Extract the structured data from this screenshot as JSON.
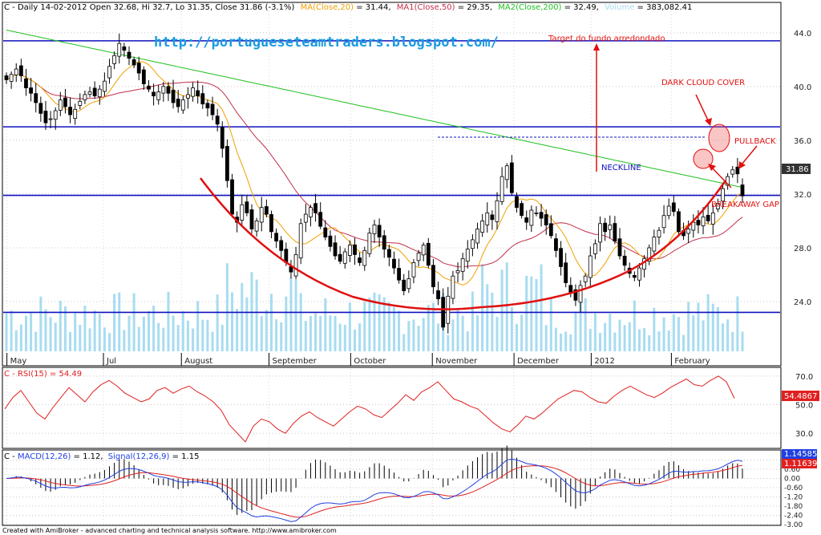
{
  "header": {
    "main_prefix": "C - Daily 14-02-2012 Open 32.68, Hi 32.7, Lo 31.35, Close 31.86 (-3.1%)",
    "ma20_label": "MA(Close,20)",
    "ma20_value": " = 31.44,",
    "ma50_label": "MA1(Close,50)",
    "ma50_value": " = 29.35,",
    "ma200_label": "MA2(Close,200)",
    "ma200_value": " = 32.49,",
    "volume_label": "Volume",
    "volume_value": " = 383,082.41"
  },
  "url_text": "http://portugueseteamtraders.blogspot.com/",
  "annotations": {
    "target": "Target do fundo arredondado",
    "dark_cloud": "DARK CLOUD COVER",
    "pullback": "PULLBACK",
    "neckline": "NECKLINE",
    "breakaway": "BREAKAWAY GAP"
  },
  "price_tag": "31.86",
  "rsi": {
    "label": "C - RSI(15) = 54.49",
    "tag": "54.4867"
  },
  "macd": {
    "prefix": "C - ",
    "macd_label": "MACD(12,26)",
    "macd_value": " = 1.12,",
    "signal_label": "Signal(12,26,9)",
    "signal_value": " = 1.15",
    "tag_signal": "1.14585",
    "tag_macd": "1.11639"
  },
  "footer": "Created with AmiBroker - advanced charting and technical analysis software. http://www.amibroker.com",
  "colors": {
    "ma20": "#f0a000",
    "ma50": "#c0304a",
    "ma200": "#20c020",
    "volume": "#a8dcf0",
    "rsi": "#e02020",
    "macd": "#2040e0",
    "signal": "#e02020",
    "lines": "#1010c0",
    "annotation": "#e01010"
  },
  "chart_data": [
    {
      "type": "candlestick",
      "title": "C - Daily",
      "x_labels": [
        "May",
        "Jul",
        "August",
        "September",
        "October",
        "November",
        "December",
        "2012",
        "February"
      ],
      "y_ticks": [
        "24.0",
        "28.0",
        "32.0",
        "36.0",
        "40.0",
        "44.0"
      ],
      "ylim": [
        20.3,
        45.6
      ],
      "close_series": [
        40.5,
        40.9,
        41.3,
        40.8,
        39.9,
        39.5,
        38.8,
        38.0,
        37.3,
        37.6,
        38.2,
        39.0,
        38.5,
        37.9,
        38.3,
        38.9,
        39.4,
        39.6,
        39.3,
        39.8,
        40.4,
        41.5,
        42.3,
        43.2,
        42.7,
        42.1,
        41.6,
        41.0,
        40.2,
        39.8,
        39.3,
        39.6,
        40.0,
        39.5,
        38.8,
        38.5,
        39.0,
        39.4,
        39.9,
        39.3,
        38.7,
        38.4,
        37.9,
        37.2,
        35.4,
        33.0,
        30.5,
        29.9,
        31.2,
        30.6,
        29.4,
        30.0,
        31.0,
        30.5,
        29.2,
        28.5,
        27.8,
        26.9,
        26.2,
        27.5,
        29.8,
        30.5,
        31.0,
        30.6,
        29.6,
        28.8,
        28.1,
        27.4,
        27.0,
        27.7,
        28.2,
        27.5,
        26.9,
        27.8,
        29.1,
        29.7,
        28.8,
        27.9,
        27.3,
        26.5,
        25.6,
        24.8,
        25.7,
        26.9,
        27.6,
        28.2,
        26.7,
        25.1,
        24.2,
        22.1,
        24.4,
        25.9,
        26.3,
        27.2,
        27.9,
        28.6,
        29.4,
        30.0,
        30.6,
        30.1,
        31.5,
        33.3,
        34.1,
        32.1,
        31.0,
        30.4,
        29.9,
        30.8,
        30.6,
        30.2,
        29.7,
        28.9,
        27.8,
        26.6,
        25.4,
        24.7,
        24.1,
        25.2,
        25.9,
        27.4,
        28.3,
        29.8,
        29.2,
        29.7,
        28.5,
        27.4,
        26.7,
        26.1,
        25.8,
        26.5,
        27.2,
        28.0,
        28.8,
        29.3,
        30.4,
        31.1,
        30.7,
        29.2,
        28.9,
        29.4,
        29.9,
        29.7,
        30.3,
        30.0,
        30.6,
        31.3,
        32.4,
        33.3,
        33.8,
        33.5,
        31.86
      ],
      "series": [
        {
          "name": "MA(Close,20)",
          "last": 31.44
        },
        {
          "name": "MA1(Close,50)",
          "last": 29.35
        },
        {
          "name": "MA2(Close,200)",
          "last": 32.49
        },
        {
          "name": "Volume",
          "last": 383082.41
        }
      ],
      "horizontal_lines": [
        43.4,
        37.0,
        31.9,
        23.2
      ],
      "last": {
        "open": 32.68,
        "high": 32.7,
        "low": 31.35,
        "close": 31.86,
        "change_pct": -3.1
      }
    },
    {
      "type": "line",
      "title": "C - RSI(15)",
      "y_ticks": [
        "30.0",
        "50.0",
        "70.0"
      ],
      "ylim": [
        20,
        75
      ],
      "series": [
        {
          "name": "RSI(15)",
          "last": 54.49,
          "values": [
            47,
            55,
            60,
            52,
            44,
            40,
            48,
            55,
            62,
            57,
            52,
            59,
            64,
            67,
            63,
            58,
            55,
            52,
            54,
            60,
            62,
            58,
            61,
            63,
            59,
            56,
            52,
            46,
            36,
            30,
            24,
            35,
            40,
            38,
            33,
            30,
            37,
            42,
            45,
            41,
            38,
            35,
            40,
            45,
            49,
            47,
            43,
            41,
            46,
            51,
            57,
            53,
            59,
            62,
            66,
            60,
            54,
            52,
            49,
            47,
            42,
            37,
            33,
            31,
            36,
            42,
            40,
            44,
            49,
            54,
            57,
            60,
            59,
            55,
            52,
            51,
            56,
            60,
            63,
            60,
            57,
            55,
            58,
            62,
            65,
            68,
            64,
            63,
            67,
            70,
            66,
            54.49
          ]
        }
      ]
    },
    {
      "type": "line",
      "title": "C - MACD(12,26)",
      "y_ticks": [
        "-3.00",
        "-2.40",
        "-1.80",
        "-1.20",
        "-0.60",
        "0.00",
        "0.60",
        "1.20"
      ],
      "ylim": [
        -3.0,
        1.75
      ],
      "series": [
        {
          "name": "MACD(12,26)",
          "last": 1.12
        },
        {
          "name": "Signal(12,26,9)",
          "last": 1.15
        }
      ]
    }
  ]
}
